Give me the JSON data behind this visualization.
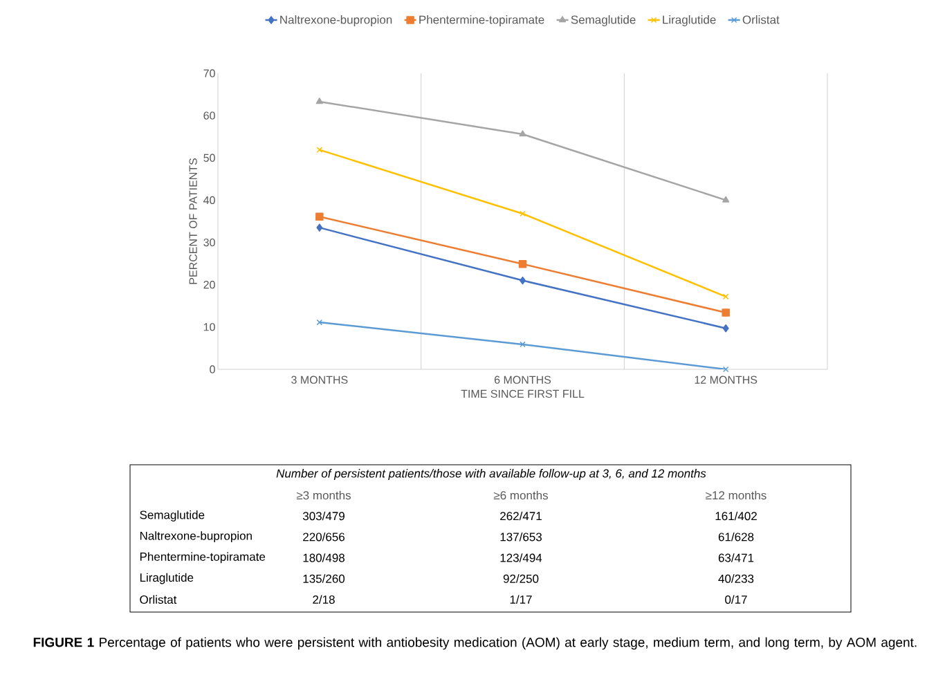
{
  "chart_data": {
    "type": "line",
    "xlabel": "TIME SINCE FIRST FILL",
    "ylabel": "PERCENT OF PATIENTS",
    "categories": [
      "3 MONTHS",
      "6 MONTHS",
      "12 MONTHS"
    ],
    "series": [
      {
        "name": "Naltrexone-bupropion",
        "color": "#4472c4",
        "marker": "diamond",
        "values": [
          33.5,
          21.0,
          9.7
        ]
      },
      {
        "name": "Phentermine-topiramate",
        "color": "#ed7d31",
        "marker": "square",
        "values": [
          36.1,
          24.9,
          13.4
        ]
      },
      {
        "name": "Semaglutide",
        "color": "#a5a5a5",
        "marker": "triangle",
        "values": [
          63.3,
          55.6,
          40.0
        ]
      },
      {
        "name": "Liraglutide",
        "color": "#ffc000",
        "marker": "cross",
        "values": [
          51.9,
          36.8,
          17.2
        ]
      },
      {
        "name": "Orlistat",
        "color": "#5b9bd5",
        "marker": "cross",
        "values": [
          11.1,
          5.9,
          0
        ]
      }
    ],
    "ylim": [
      0,
      70
    ],
    "yticks": [
      0,
      10,
      20,
      30,
      40,
      50,
      60,
      70
    ],
    "grid": "x",
    "legend": "top",
    "annotations": [
      "*Number of persistent patients/those with available follow-up at 3, 6, and 12 months*",
      "≥3 months",
      "≥6 months",
      "≥12 months",
      "Semaglutide",
      "303/479",
      "262/471",
      "161/402",
      "Naltrexone-bupropion",
      "220/656",
      "137/653",
      "61/628",
      "Phentermine-topiramate",
      "180/498",
      "123/494",
      "63/471",
      "Liraglutide",
      "135/260",
      "92/250",
      "40/233",
      "Orlistat",
      "2/18",
      "1/17",
      "0/17",
      "**FIGURE 1** Percentage of patients who were persistent with antiobesity medication (AOM) at early stage, medium term, and long term, by AOM agent."
    ]
  }
}
